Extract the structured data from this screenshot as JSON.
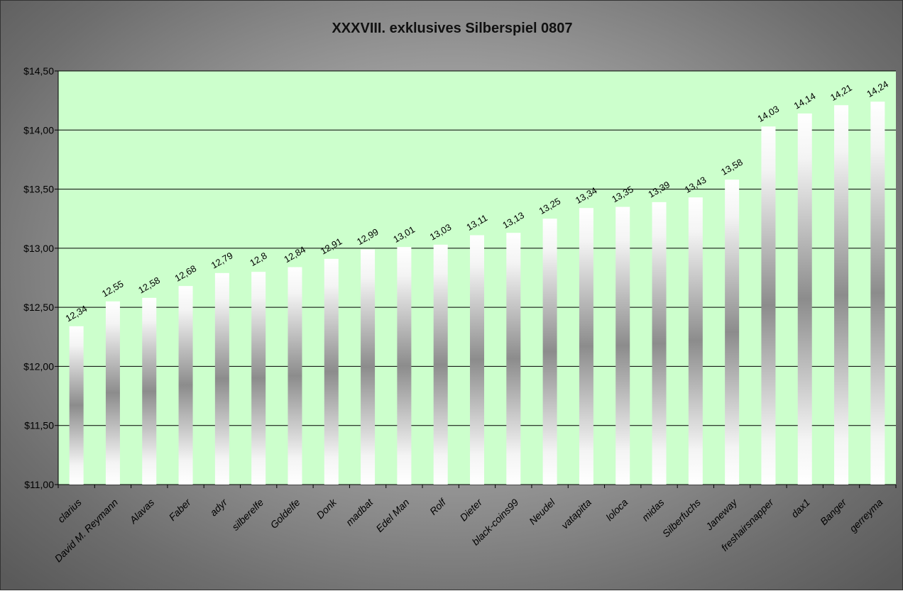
{
  "chart_data": {
    "type": "bar",
    "title": "XXXVIII. exklusives Silberspiel 0807",
    "xlabel": "",
    "ylabel": "",
    "ylim": [
      11.0,
      14.5
    ],
    "grid": true,
    "plot_background": "#ccffcc",
    "y_ticks": [
      "$11,00",
      "$11,50",
      "$12,00",
      "$12,50",
      "$13,00",
      "$13,50",
      "$14,00",
      "$14,50"
    ],
    "y_tick_values": [
      11.0,
      11.5,
      12.0,
      12.5,
      13.0,
      13.5,
      14.0,
      14.5
    ],
    "categories": [
      "clarius",
      "David M. Reymann",
      "Alavas",
      "Faber",
      "adyr",
      "silberelfe",
      "Goldelfe",
      "Donk",
      "madbat",
      "Edel Man",
      "Rolf",
      "Dieter",
      "black-coins99",
      "Neudel",
      "vatapitta",
      "loloca",
      "midas",
      "Silberfuchs",
      "Janeway",
      "freshairsnapper",
      "dax1",
      "Banger",
      "gerreyma"
    ],
    "values": [
      12.34,
      12.55,
      12.58,
      12.68,
      12.79,
      12.8,
      12.84,
      12.91,
      12.99,
      13.01,
      13.03,
      13.11,
      13.13,
      13.25,
      13.34,
      13.35,
      13.39,
      13.43,
      13.58,
      14.03,
      14.14,
      14.21,
      14.24
    ],
    "data_labels": [
      "12,34",
      "12,55",
      "12,58",
      "12,68",
      "12,79",
      "12,8",
      "12,84",
      "12,91",
      "12,99",
      "13,01",
      "13,03",
      "13,11",
      "13,13",
      "13,25",
      "13,34",
      "13,35",
      "13,39",
      "13,43",
      "13,58",
      "14,03",
      "14,14",
      "14,21",
      "14,24"
    ]
  }
}
